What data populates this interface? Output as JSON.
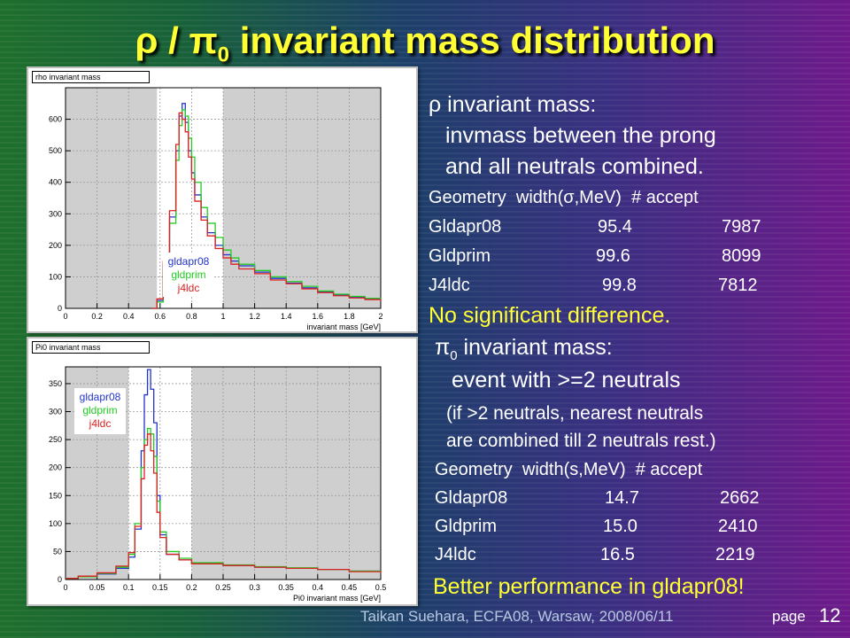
{
  "slide": {
    "title_rho": "ρ",
    "title_slash": " / ",
    "title_pi": "π",
    "title_pi_sub": "0",
    "title_rest": " invariant mass distribution"
  },
  "rho_text": {
    "heading_sym": "ρ",
    "heading": " invariant mass:",
    "line1": "invmass between the prong",
    "line2": "and all neutrals combined.",
    "table_header": "Geometry  width(σ,MeV)  # accept",
    "rows": [
      {
        "geom": "Gldapr08",
        "width": "95.4",
        "accept": "7987"
      },
      {
        "geom": "Gldprim",
        "width": "99.6",
        "accept": "8099"
      },
      {
        "geom": "J4ldc",
        "width": "99.8",
        "accept": "7812"
      }
    ],
    "conclusion": "No significant difference."
  },
  "pi0_text": {
    "heading_sym": "π",
    "heading_sub": "0",
    "heading": " invariant mass:",
    "line1": "event with >=2 neutrals",
    "line2": "(if >2 neutrals, nearest neutrals",
    "line3": "are combined till 2 neutrals rest.)",
    "table_header": "Geometry  width(s,MeV)  # accept",
    "rows": [
      {
        "geom": "Gldapr08",
        "width": "14.7",
        "accept": "2662"
      },
      {
        "geom": "Gldprim",
        "width": "15.0",
        "accept": "2410"
      },
      {
        "geom": "J4ldc",
        "width": "16.5",
        "accept": "2219"
      }
    ],
    "conclusion": "Better performance in gldapr08!"
  },
  "footer": {
    "credit": "Taikan Suehara, ECFA08, Warsaw, 2008/06/11",
    "page_label": "page",
    "page_number": "12"
  },
  "colors": {
    "title": "#ffff33",
    "gldapr08": "#2233cc",
    "gldprim": "#22cc22",
    "j4ldc": "#dd2222",
    "shade": "#cfcfcf"
  },
  "chart_data": [
    {
      "type": "line",
      "name": "rho invariant mass",
      "xlabel": "invariant mass [GeV]",
      "xlim": [
        0,
        2
      ],
      "ylim": [
        0,
        700
      ],
      "xticks": [
        "0",
        "0.2",
        "0.4",
        "0.6",
        "0.8",
        "1",
        "1.2",
        "1.4",
        "1.6",
        "1.8",
        "2"
      ],
      "yticks": [
        "0",
        "100",
        "200",
        "300",
        "400",
        "500",
        "600"
      ],
      "accepted_window": [
        0.58,
        1.0
      ],
      "legend": [
        "gldapr08",
        "gldprim",
        "j4ldc"
      ],
      "x": [
        0.55,
        0.58,
        0.62,
        0.66,
        0.7,
        0.72,
        0.74,
        0.76,
        0.78,
        0.8,
        0.82,
        0.86,
        0.9,
        0.95,
        1.0,
        1.05,
        1.1,
        1.2,
        1.3,
        1.4,
        1.5,
        1.6,
        1.7,
        1.8,
        1.9,
        2.0
      ],
      "series": [
        {
          "name": "gldapr08",
          "values": [
            0,
            25,
            140,
            290,
            500,
            610,
            650,
            590,
            500,
            430,
            360,
            290,
            240,
            200,
            170,
            150,
            135,
            115,
            95,
            80,
            65,
            52,
            42,
            35,
            30,
            25
          ]
        },
        {
          "name": "gldprim",
          "values": [
            0,
            20,
            130,
            270,
            470,
            580,
            630,
            610,
            540,
            480,
            400,
            320,
            270,
            225,
            185,
            160,
            140,
            120,
            100,
            85,
            70,
            55,
            45,
            38,
            32,
            27
          ]
        },
        {
          "name": "j4ldc",
          "values": [
            0,
            30,
            150,
            310,
            520,
            620,
            600,
            560,
            480,
            410,
            340,
            280,
            230,
            190,
            160,
            140,
            125,
            110,
            90,
            78,
            62,
            50,
            40,
            33,
            28,
            22
          ]
        }
      ]
    },
    {
      "type": "line",
      "name": "Pi0 invariant mass",
      "xlabel": "Pi0 invariant mass [GeV]",
      "xlim": [
        0,
        0.5
      ],
      "ylim": [
        0,
        380
      ],
      "xticks": [
        "0",
        "0.05",
        "0.1",
        "0.15",
        "0.2",
        "0.25",
        "0.3",
        "0.35",
        "0.4",
        "0.45",
        "0.5"
      ],
      "yticks": [
        "0",
        "50",
        "100",
        "150",
        "200",
        "250",
        "300",
        "350"
      ],
      "accepted_window": [
        0.1,
        0.2
      ],
      "legend": [
        "gldapr08",
        "gldprim",
        "j4ldc"
      ],
      "x": [
        0.0,
        0.02,
        0.05,
        0.08,
        0.1,
        0.11,
        0.12,
        0.125,
        0.13,
        0.135,
        0.14,
        0.145,
        0.15,
        0.16,
        0.18,
        0.2,
        0.25,
        0.3,
        0.35,
        0.4,
        0.45,
        0.5
      ],
      "series": [
        {
          "name": "gldapr08",
          "values": [
            2,
            5,
            10,
            20,
            40,
            90,
            230,
            330,
            375,
            340,
            280,
            150,
            80,
            45,
            35,
            28,
            25,
            22,
            20,
            18,
            15,
            12
          ]
        },
        {
          "name": "gldprim",
          "values": [
            2,
            5,
            11,
            22,
            45,
            100,
            200,
            250,
            270,
            260,
            220,
            140,
            85,
            50,
            38,
            30,
            26,
            23,
            21,
            18,
            15,
            12
          ]
        },
        {
          "name": "j4ldc",
          "values": [
            2,
            6,
            12,
            24,
            48,
            95,
            180,
            240,
            260,
            230,
            190,
            120,
            75,
            45,
            35,
            28,
            25,
            22,
            20,
            18,
            14,
            11
          ]
        }
      ]
    }
  ]
}
